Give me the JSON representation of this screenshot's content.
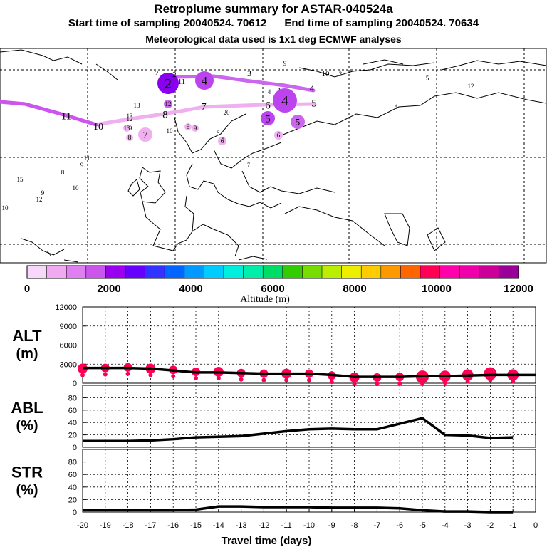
{
  "header": {
    "title": "Retroplume summary for ASTAR-040524a",
    "start_label": "Start time of sampling 20040524. 70612",
    "end_label": "End time of sampling 20040524. 70634",
    "met_label": "Meteorological data used is 1x1 deg ECMWF analyses"
  },
  "map": {
    "plume_labels": [
      "2",
      "2",
      "2",
      "11",
      "4",
      "3",
      "9",
      "10",
      "3",
      "4",
      "5",
      "4",
      "11",
      "4",
      "6",
      "5",
      "5",
      "4",
      "5",
      "8",
      "12",
      "12",
      "6",
      "7",
      "20",
      "13",
      "13",
      "12",
      "11",
      "10",
      "9",
      "8",
      "7",
      "13",
      "10",
      "6",
      "9",
      "6",
      "8",
      "6",
      "7",
      "11",
      "9",
      "8",
      "15",
      "10",
      "12",
      "9",
      "10"
    ],
    "colors": {
      "purple_dark": "#8800ee",
      "purple_mid": "#bb44ee",
      "violet": "#cc66ee",
      "pink_light": "#f0b0f0",
      "lavender": "#dd99f0"
    }
  },
  "colorbar": {
    "ticks": [
      "0",
      "2000",
      "4000",
      "6000",
      "8000",
      "10000",
      "12000"
    ],
    "label": "Altitude (m)",
    "colors": [
      "#f8d8f8",
      "#f0aaf0",
      "#e080f0",
      "#cc55ee",
      "#9900ee",
      "#6600ff",
      "#3333ff",
      "#0066ff",
      "#0099ff",
      "#00ccff",
      "#00eedd",
      "#00eeaa",
      "#00dd66",
      "#33cc00",
      "#77dd00",
      "#bbee00",
      "#eeee00",
      "#ffcc00",
      "#ff9900",
      "#ff6600",
      "#ff0055",
      "#ff00aa",
      "#ee00aa",
      "#cc0099",
      "#990099"
    ]
  },
  "chart_data": [
    {
      "type": "line",
      "panel_label": "ALT\n(m)",
      "label_line1": "ALT",
      "label_line2": "(m)",
      "x": [
        -20,
        -19,
        -18,
        -17,
        -16,
        -15,
        -14,
        -13,
        -12,
        -11,
        -10,
        -9,
        -8,
        -7,
        -6,
        -5,
        -4,
        -3,
        -2,
        -1,
        0
      ],
      "y": [
        2400,
        2400,
        2400,
        2300,
        2000,
        1700,
        1700,
        1600,
        1500,
        1500,
        1500,
        1300,
        1000,
        1000,
        1000,
        1100,
        1100,
        1200,
        1300,
        1300,
        1300
      ],
      "markers_x": [
        -20,
        -19,
        -18,
        -17,
        -16,
        -15,
        -14,
        -13,
        -12,
        -11,
        -10,
        -9,
        -8,
        -7,
        -6,
        -5,
        -4,
        -3,
        -2,
        -1
      ],
      "markers_y": [
        2300,
        2400,
        2500,
        2300,
        2100,
        1800,
        1800,
        1600,
        1500,
        1500,
        1500,
        1200,
        900,
        900,
        1000,
        1000,
        1100,
        1300,
        1500,
        1300
      ],
      "yticks": [
        "12000",
        "9000",
        "6000",
        "3000",
        "0"
      ],
      "ylim": [
        0,
        12000
      ],
      "marker_color": "#ff0055"
    },
    {
      "type": "line",
      "panel_label": "ABL\n(%)",
      "label_line1": "ABL",
      "label_line2": "(%)",
      "x": [
        -20,
        -19,
        -18,
        -17,
        -16,
        -15,
        -14,
        -13,
        -12,
        -11,
        -10,
        -9,
        -8,
        -7,
        -6,
        -5,
        -4,
        -3,
        -2,
        -1
      ],
      "y": [
        10,
        10,
        10,
        11,
        13,
        16,
        17,
        18,
        22,
        26,
        29,
        30,
        29,
        29,
        38,
        47,
        20,
        19,
        15,
        16
      ],
      "yticks": [
        "80",
        "60",
        "40",
        "20",
        "0"
      ],
      "ylim": [
        0,
        100
      ]
    },
    {
      "type": "line",
      "panel_label": "STR\n(%)",
      "label_line1": "STR",
      "label_line2": "(%)",
      "x": [
        -20,
        -19,
        -18,
        -17,
        -16,
        -15,
        -14,
        -13,
        -12,
        -11,
        -10,
        -9,
        -8,
        -7,
        -6,
        -5,
        -4,
        -3,
        -2,
        -1
      ],
      "y": [
        3,
        3,
        3,
        3,
        3,
        4,
        9,
        9,
        8,
        8,
        8,
        7,
        7,
        7,
        6,
        3,
        1,
        1,
        0,
        0
      ],
      "yticks": [
        "80",
        "60",
        "40",
        "20",
        "0"
      ],
      "ylim": [
        0,
        100
      ],
      "xticks": [
        "-20",
        "-19",
        "-18",
        "-17",
        "-16",
        "-15",
        "-14",
        "-13",
        "-12",
        "-11",
        "-10",
        "-9",
        "-8",
        "-7",
        "-6",
        "-5",
        "-4",
        "-3",
        "-2",
        "-1",
        "0"
      ],
      "xlabel": "Travel time (days)"
    }
  ]
}
